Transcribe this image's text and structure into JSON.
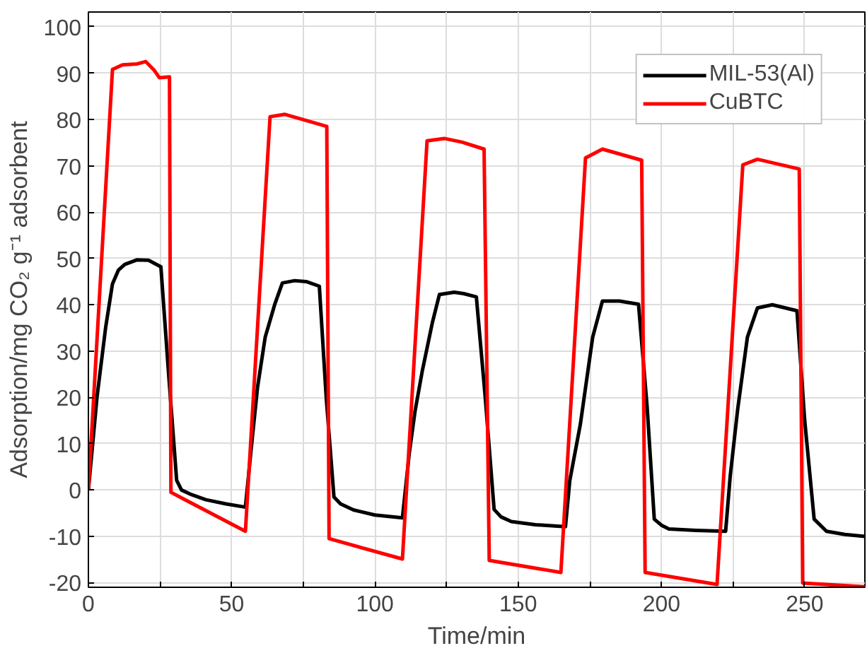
{
  "chart_data": {
    "type": "line",
    "xlabel": "Time/min",
    "ylabel": "Adsorption/mg CO₂ g⁻¹ adsorbent",
    "xlim": [
      0,
      271
    ],
    "ylim": [
      -21,
      103.2
    ],
    "xticks": [
      0,
      {
        "value": 25,
        "label": null
      },
      50,
      {
        "value": 75,
        "label": null
      },
      100,
      {
        "value": 125,
        "label": null
      },
      150,
      {
        "value": 175,
        "label": null
      },
      200,
      {
        "value": 225,
        "label": null
      },
      250
    ],
    "yticks": [
      -20,
      -10,
      0,
      10,
      20,
      30,
      40,
      50,
      60,
      70,
      80,
      90,
      100
    ],
    "grid": true,
    "legend": "top right",
    "line_style": "solid",
    "marker": "none",
    "series": [
      {
        "name": "MIL-53(Al)",
        "color": "#000000",
        "x": [
          0,
          3,
          6,
          8.4,
          10.5,
          12.7,
          17,
          21,
          25.3,
          28,
          30.8,
          32.5,
          36,
          41,
          48,
          54.8,
          57,
          59,
          61.7,
          65,
          67.7,
          72,
          76,
          80.6,
          83,
          85.7,
          88,
          92.5,
          100,
          109.6,
          112,
          114,
          116.5,
          120,
          122.5,
          127.7,
          131,
          135.4,
          138.5,
          141.6,
          144,
          147.6,
          156,
          166.5,
          168,
          171.7,
          176,
          179.4,
          185.4,
          192,
          195,
          197.5,
          200,
          202.6,
          212,
          222.4,
          224,
          226.6,
          230,
          233.5,
          238.7,
          247.3,
          250,
          253.3,
          257.6,
          264,
          271
        ],
        "values": [
          0,
          20,
          35,
          44.5,
          47.5,
          48.7,
          49.7,
          49.6,
          48.2,
          25,
          2.1,
          0,
          -1,
          -2.1,
          -3,
          -3.7,
          10,
          22,
          33,
          40,
          44.7,
          45.2,
          45,
          44,
          20,
          -1.5,
          -3,
          -4.3,
          -5.4,
          -6,
          8,
          17,
          25.6,
          36,
          42.2,
          42.7,
          42.4,
          41.7,
          20,
          -4.2,
          -5.8,
          -6.8,
          -7.5,
          -7.9,
          2,
          14.2,
          33,
          40.8,
          40.8,
          40.1,
          18,
          -6.3,
          -7.6,
          -8.4,
          -8.7,
          -8.9,
          3,
          17.4,
          33,
          39.3,
          40,
          38.7,
          15,
          -6.3,
          -8.9,
          -9.6,
          -10
        ]
      },
      {
        "name": "CuBTC",
        "color": "#ff0000",
        "x": [
          0,
          8.4,
          11.9,
          17,
          20,
          23,
          24.8,
          28.3,
          28.8,
          54.8,
          63.4,
          68.6,
          83.2,
          84,
          109.6,
          118.2,
          124.2,
          130.4,
          138.1,
          139.9,
          164.9,
          173.5,
          179.4,
          193.1,
          194.3,
          219.4,
          228.4,
          233.5,
          248.1,
          249.3,
          271
        ],
        "values": [
          0,
          90.8,
          91.8,
          92,
          92.5,
          90.6,
          89,
          89.2,
          -0.5,
          -8.9,
          80.6,
          81.1,
          78.5,
          -10.5,
          -14.9,
          75.4,
          75.9,
          75.1,
          73.6,
          -15.2,
          -17.8,
          71.7,
          73.6,
          71.2,
          -17.8,
          -20.4,
          70.2,
          71.4,
          69.3,
          -20.1,
          -20.9
        ]
      }
    ]
  }
}
